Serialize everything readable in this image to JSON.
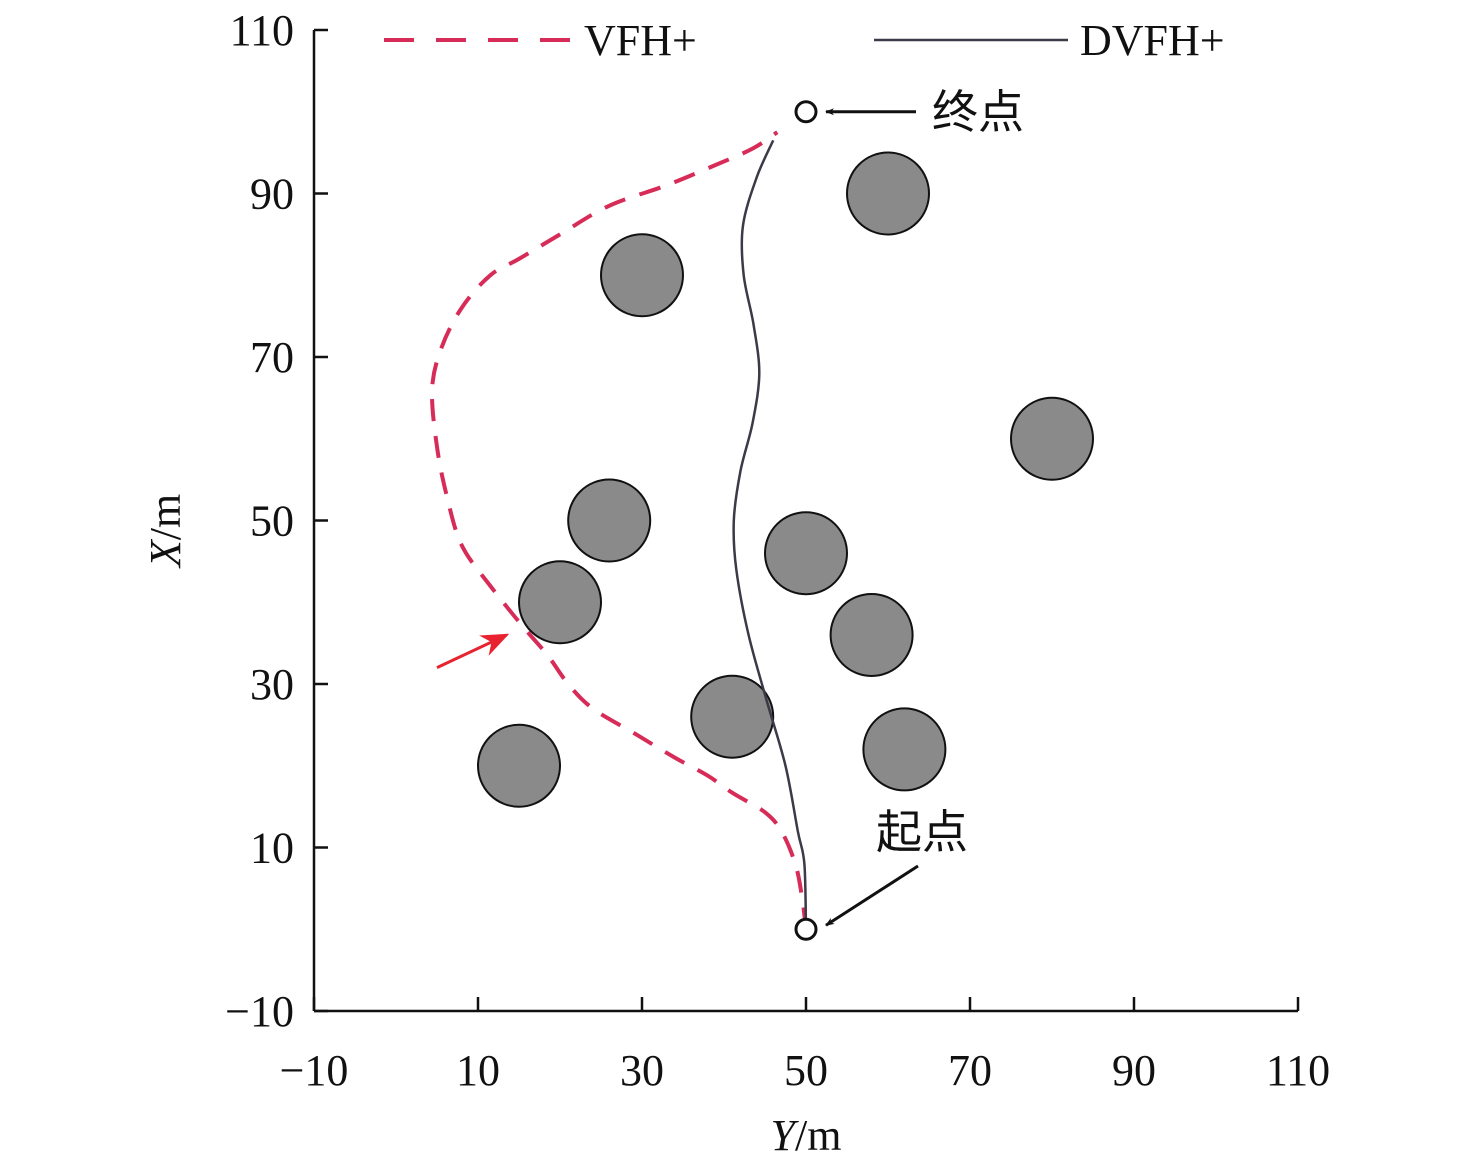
{
  "chart_data": {
    "type": "scatter",
    "xlabel": {
      "var": "Y",
      "unit": "/m"
    },
    "ylabel": {
      "var": "X",
      "unit": "/m"
    },
    "xlim": [
      -10,
      110
    ],
    "ylim": [
      -10,
      110
    ],
    "xticks": [
      -10,
      10,
      30,
      50,
      70,
      90,
      110
    ],
    "yticks": [
      -10,
      10,
      30,
      50,
      70,
      90,
      110
    ],
    "grid": false,
    "legend": "top",
    "series": [
      {
        "name": "VFH+",
        "style": "dashed",
        "color": "#d62c57",
        "points": [
          [
            50,
            0
          ],
          [
            49.5,
            4
          ],
          [
            48.7,
            8
          ],
          [
            47,
            12
          ],
          [
            45,
            14.3
          ],
          [
            41,
            16.7
          ],
          [
            38,
            18.8
          ],
          [
            34,
            21
          ],
          [
            29,
            24
          ],
          [
            24,
            27
          ],
          [
            21,
            30
          ],
          [
            18.5,
            33.5
          ],
          [
            15.5,
            37
          ],
          [
            11.5,
            42
          ],
          [
            8,
            47
          ],
          [
            6.2,
            53
          ],
          [
            5,
            59
          ],
          [
            4.4,
            66
          ],
          [
            5.5,
            71
          ],
          [
            8,
            76
          ],
          [
            11.5,
            80
          ],
          [
            15,
            82
          ],
          [
            20,
            85
          ],
          [
            26,
            88.5
          ],
          [
            33,
            91
          ],
          [
            39,
            93.5
          ],
          [
            43.5,
            95.5
          ],
          [
            46.5,
            97.5
          ]
        ]
      },
      {
        "name": "DVFH+",
        "style": "solid",
        "color": "#3a3a48",
        "points": [
          [
            50,
            0
          ],
          [
            49.8,
            8
          ],
          [
            49,
            12
          ],
          [
            47.5,
            20
          ],
          [
            45.2,
            28
          ],
          [
            43,
            36
          ],
          [
            41.5,
            44
          ],
          [
            41.2,
            50
          ],
          [
            42,
            56
          ],
          [
            43.5,
            62
          ],
          [
            44.3,
            68
          ],
          [
            43.6,
            74
          ],
          [
            42.4,
            80
          ],
          [
            42.3,
            86
          ],
          [
            44,
            92
          ],
          [
            46,
            96.5
          ]
        ]
      }
    ],
    "obstacles": {
      "radius": 5,
      "color": "#8a8a8a",
      "centers": [
        [
          15,
          20
        ],
        [
          20,
          40
        ],
        [
          26,
          50
        ],
        [
          30,
          80
        ],
        [
          41,
          26
        ],
        [
          50,
          46
        ],
        [
          58,
          36
        ],
        [
          60,
          90
        ],
        [
          62,
          22
        ],
        [
          80,
          60
        ]
      ]
    },
    "annotations": [
      {
        "label": "终点",
        "at": [
          50,
          100
        ]
      },
      {
        "label": "起点",
        "at": [
          50,
          0
        ]
      }
    ],
    "highlight_arrow": {
      "color": "#e8222f",
      "from": [
        5,
        32
      ],
      "to": [
        13.5,
        36
      ]
    }
  }
}
